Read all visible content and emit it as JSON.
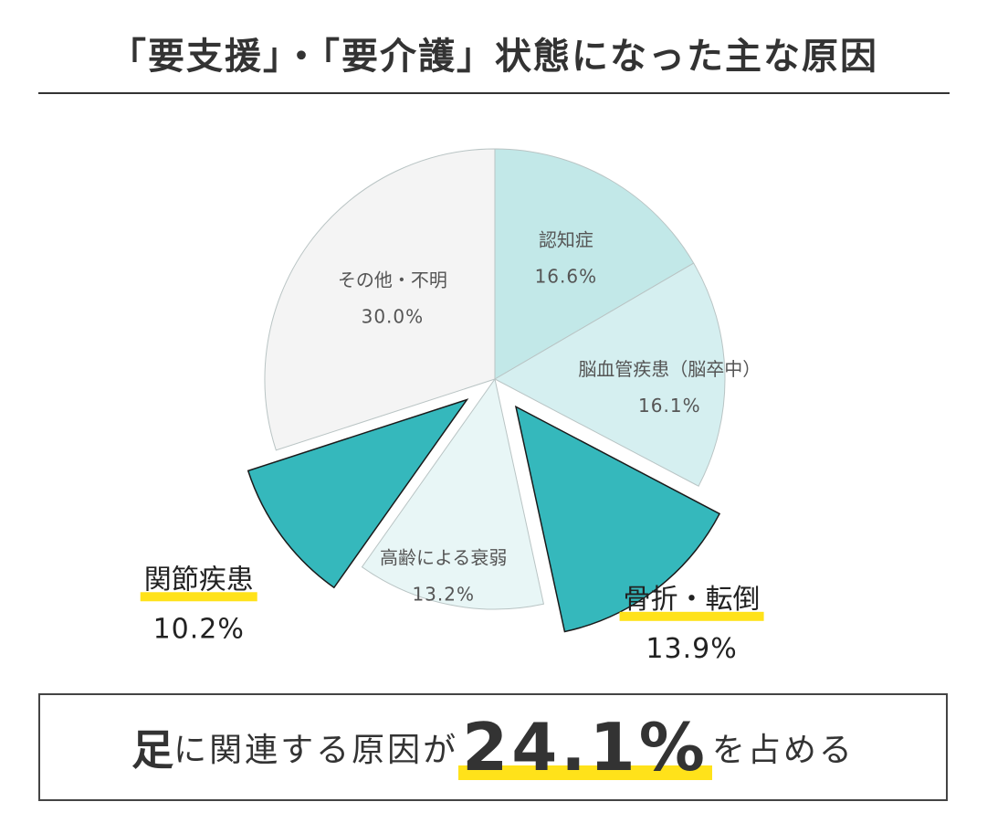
{
  "title": "「要支援」・「要介護」状態になった主な原因",
  "chart_data": {
    "type": "pie",
    "categories": [
      "認知症",
      "脳血管疾患（脳卒中）",
      "骨折・転倒",
      "高齢による衰弱",
      "関節疾患",
      "その他・不明"
    ],
    "values": [
      16.6,
      16.1,
      13.9,
      13.2,
      10.2,
      30.0
    ],
    "value_labels": [
      "16.6%",
      "16.1%",
      "13.9%",
      "13.2%",
      "10.2%",
      "30.0%"
    ],
    "colors": [
      "#c2e8e8",
      "#d5eff0",
      "#35b8bc",
      "#e8f6f6",
      "#35b8bc",
      "#f4f4f4"
    ],
    "exploded": [
      false,
      false,
      true,
      false,
      true,
      false
    ],
    "highlighted": [
      false,
      false,
      true,
      false,
      true,
      false
    ],
    "highlight_color": "#ffe21a",
    "start_angle": "top",
    "direction": "clockwise",
    "legend": "none"
  },
  "footer": {
    "part1": "足",
    "part2": "に関連する原因が",
    "number": "24.1",
    "percent": "%",
    "part3": "を占める",
    "highlight_color": "#ffe21a"
  }
}
